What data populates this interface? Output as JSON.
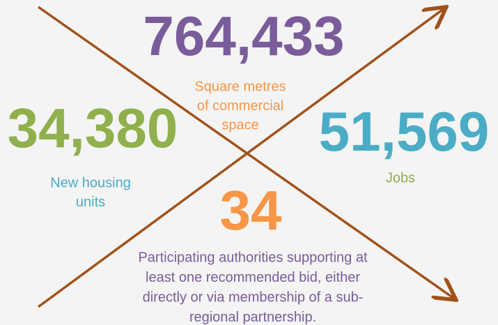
{
  "figures": [
    {
      "value": "764,433",
      "caption": [
        "Square metres",
        "of commercial",
        "space"
      ]
    },
    {
      "value": "34,380",
      "caption": [
        "New housing",
        "units"
      ]
    },
    {
      "value": "51,569",
      "caption": [
        "Jobs"
      ]
    },
    {
      "value": "34",
      "caption": [
        "Participating authorities supporting at",
        "least one recommended bid, either",
        "directly or via membership of a sub-",
        "regional partnership."
      ]
    }
  ]
}
